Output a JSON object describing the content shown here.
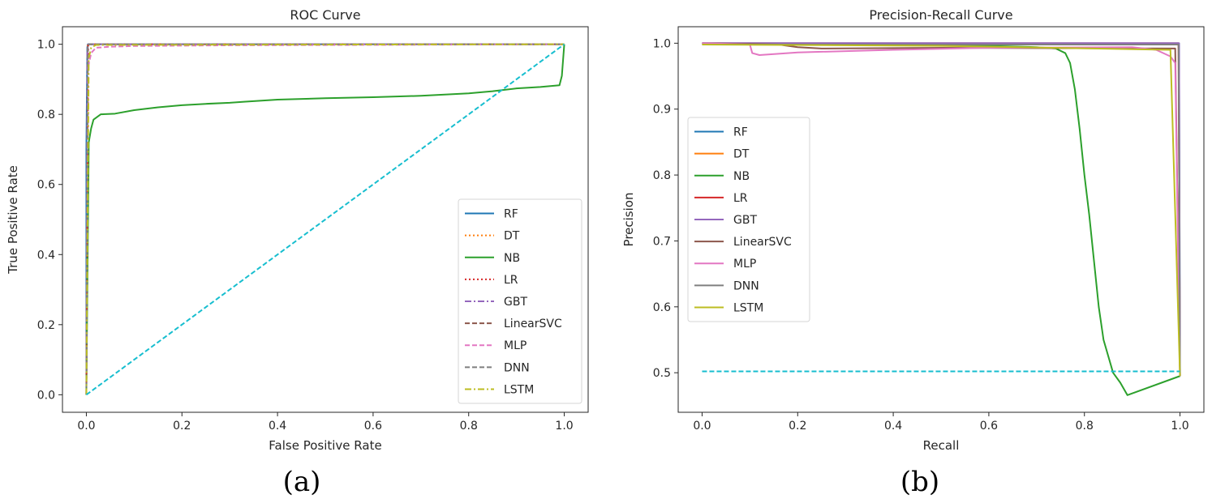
{
  "chart_data": [
    {
      "type": "line",
      "panel_label": "(a)",
      "title": "ROC Curve",
      "xlabel": "False Positive Rate",
      "ylabel": "True Positive Rate",
      "xlim": [
        -0.05,
        1.05
      ],
      "ylim": [
        -0.05,
        1.05
      ],
      "xticks": [
        0.0,
        0.2,
        0.4,
        0.6,
        0.8,
        1.0
      ],
      "yticks": [
        0.0,
        0.2,
        0.4,
        0.6,
        0.8,
        1.0
      ],
      "xtick_labels": [
        "0.0",
        "0.2",
        "0.4",
        "0.6",
        "0.8",
        "1.0"
      ],
      "ytick_labels": [
        "0.0",
        "0.2",
        "0.4",
        "0.6",
        "0.8",
        "1.0"
      ],
      "legend_position": "lower-right",
      "legend": [
        "RF",
        "DT",
        "NB",
        "LR",
        "GBT",
        "LinearSVC",
        "MLP",
        "DNN",
        "LSTM"
      ],
      "series": [
        {
          "name": "RF",
          "color": "#1f77b4",
          "dash": "solid",
          "points": [
            [
              0,
              0
            ],
            [
              0,
              0.7
            ],
            [
              0.002,
              0.99
            ],
            [
              0.003,
              1.0
            ],
            [
              1.0,
              1.0
            ]
          ]
        },
        {
          "name": "DT",
          "color": "#ff7f0e",
          "dash": "dotted",
          "points": [
            [
              0,
              0
            ],
            [
              0.003,
              0.998
            ],
            [
              0.005,
              1.0
            ],
            [
              1.0,
              1.0
            ]
          ]
        },
        {
          "name": "NB",
          "color": "#2ca02c",
          "dash": "solid",
          "points": [
            [
              0,
              0
            ],
            [
              0.005,
              0.72
            ],
            [
              0.01,
              0.76
            ],
            [
              0.015,
              0.785
            ],
            [
              0.03,
              0.8
            ],
            [
              0.06,
              0.802
            ],
            [
              0.1,
              0.812
            ],
            [
              0.15,
              0.82
            ],
            [
              0.2,
              0.826
            ],
            [
              0.25,
              0.83
            ],
            [
              0.3,
              0.833
            ],
            [
              0.33,
              0.836
            ],
            [
              0.4,
              0.842
            ],
            [
              0.5,
              0.846
            ],
            [
              0.6,
              0.849
            ],
            [
              0.7,
              0.853
            ],
            [
              0.8,
              0.86
            ],
            [
              0.85,
              0.866
            ],
            [
              0.9,
              0.874
            ],
            [
              0.95,
              0.878
            ],
            [
              0.99,
              0.883
            ],
            [
              0.995,
              0.91
            ],
            [
              1.0,
              1.0
            ]
          ]
        },
        {
          "name": "LR",
          "color": "#d62728",
          "dash": "dotted",
          "points": [
            [
              0,
              0
            ],
            [
              0.004,
              0.998
            ],
            [
              0.006,
              1.0
            ],
            [
              1.0,
              1.0
            ]
          ]
        },
        {
          "name": "GBT",
          "color": "#9467bd",
          "dash": "dashdot",
          "points": [
            [
              0,
              0
            ],
            [
              0.002,
              0.99
            ],
            [
              0.004,
              1.0
            ],
            [
              1.0,
              1.0
            ]
          ]
        },
        {
          "name": "LinearSVC",
          "color": "#8c564b",
          "dash": "dashed",
          "points": [
            [
              0,
              0
            ],
            [
              0.003,
              0.995
            ],
            [
              0.005,
              1.0
            ],
            [
              1.0,
              1.0
            ]
          ]
        },
        {
          "name": "MLP",
          "color": "#e377c2",
          "dash": "dashed",
          "points": [
            [
              0,
              0
            ],
            [
              0.003,
              0.93
            ],
            [
              0.01,
              0.975
            ],
            [
              0.02,
              0.99
            ],
            [
              0.05,
              0.993
            ],
            [
              0.1,
              0.995
            ],
            [
              0.3,
              0.997
            ],
            [
              1.0,
              1.0
            ]
          ]
        },
        {
          "name": "DNN",
          "color": "#7f7f7f",
          "dash": "dashed",
          "points": [
            [
              0,
              0
            ],
            [
              0.003,
              0.997
            ],
            [
              0.006,
              1.0
            ],
            [
              1.0,
              1.0
            ]
          ]
        },
        {
          "name": "LSTM",
          "color": "#bcbd22",
          "dash": "dashdot",
          "points": [
            [
              0,
              0
            ],
            [
              0.005,
              0.96
            ],
            [
              0.01,
              0.99
            ],
            [
              0.02,
              0.998
            ],
            [
              1.0,
              1.0
            ]
          ]
        },
        {
          "name": "chance",
          "color": "#17becf",
          "dash": "dashed",
          "legend": false,
          "points": [
            [
              0,
              0
            ],
            [
              1.0,
              1.0
            ]
          ]
        }
      ]
    },
    {
      "type": "line",
      "panel_label": "(b)",
      "title": "Precision-Recall Curve",
      "xlabel": "Recall",
      "ylabel": "Precision",
      "xlim": [
        -0.05,
        1.05
      ],
      "ylim": [
        0.44,
        1.025
      ],
      "xticks": [
        0.0,
        0.2,
        0.4,
        0.6,
        0.8,
        1.0
      ],
      "yticks": [
        0.5,
        0.6,
        0.7,
        0.8,
        0.9,
        1.0
      ],
      "xtick_labels": [
        "0.0",
        "0.2",
        "0.4",
        "0.6",
        "0.8",
        "1.0"
      ],
      "ytick_labels": [
        "0.5",
        "0.6",
        "0.7",
        "0.8",
        "0.9",
        "1.0"
      ],
      "legend_position": "center-left",
      "legend": [
        "RF",
        "DT",
        "NB",
        "LR",
        "GBT",
        "LinearSVC",
        "MLP",
        "DNN",
        "LSTM"
      ],
      "series": [
        {
          "name": "RF",
          "color": "#1f77b4",
          "dash": "solid",
          "points": [
            [
              0,
              1.0
            ],
            [
              0.998,
              1.0
            ],
            [
              1.0,
              0.5
            ],
            [
              1.0,
              0.495
            ]
          ]
        },
        {
          "name": "DT",
          "color": "#ff7f0e",
          "dash": "solid",
          "points": [
            [
              0,
              0.999
            ],
            [
              0.997,
              0.999
            ],
            [
              1.0,
              0.495
            ]
          ]
        },
        {
          "name": "NB",
          "color": "#2ca02c",
          "dash": "solid",
          "points": [
            [
              0,
              1.0
            ],
            [
              0.6,
              0.996
            ],
            [
              0.7,
              0.994
            ],
            [
              0.74,
              0.992
            ],
            [
              0.76,
              0.985
            ],
            [
              0.77,
              0.97
            ],
            [
              0.78,
              0.93
            ],
            [
              0.79,
              0.87
            ],
            [
              0.8,
              0.8
            ],
            [
              0.81,
              0.74
            ],
            [
              0.82,
              0.67
            ],
            [
              0.83,
              0.6
            ],
            [
              0.84,
              0.55
            ],
            [
              0.86,
              0.5
            ],
            [
              0.875,
              0.485
            ],
            [
              0.89,
              0.466
            ],
            [
              1.0,
              0.495
            ]
          ]
        },
        {
          "name": "LR",
          "color": "#d62728",
          "dash": "solid",
          "points": [
            [
              0,
              1.0
            ],
            [
              0.997,
              1.0
            ],
            [
              1.0,
              0.495
            ]
          ]
        },
        {
          "name": "GBT",
          "color": "#9467bd",
          "dash": "solid",
          "points": [
            [
              0,
              1.0
            ],
            [
              0.998,
              1.0
            ],
            [
              1.0,
              0.495
            ]
          ]
        },
        {
          "name": "LinearSVC",
          "color": "#8c564b",
          "dash": "solid",
          "points": [
            [
              0,
              1.0
            ],
            [
              0.16,
              0.998
            ],
            [
              0.2,
              0.994
            ],
            [
              0.25,
              0.992
            ],
            [
              0.5,
              0.993
            ],
            [
              0.99,
              0.992
            ],
            [
              1.0,
              0.495
            ]
          ]
        },
        {
          "name": "MLP",
          "color": "#e377c2",
          "dash": "solid",
          "points": [
            [
              0,
              1.0
            ],
            [
              0.1,
              0.998
            ],
            [
              0.105,
              0.985
            ],
            [
              0.12,
              0.982
            ],
            [
              0.2,
              0.986
            ],
            [
              0.4,
              0.99
            ],
            [
              0.6,
              0.993
            ],
            [
              0.9,
              0.994
            ],
            [
              0.95,
              0.99
            ],
            [
              0.98,
              0.98
            ],
            [
              0.99,
              0.97
            ],
            [
              1.0,
              0.495
            ]
          ]
        },
        {
          "name": "DNN",
          "color": "#7f7f7f",
          "dash": "solid",
          "points": [
            [
              0,
              0.998
            ],
            [
              0.997,
              0.998
            ],
            [
              1.0,
              0.495
            ]
          ]
        },
        {
          "name": "LSTM",
          "color": "#bcbd22",
          "dash": "solid",
          "points": [
            [
              0,
              0.998
            ],
            [
              0.5,
              0.996
            ],
            [
              0.98,
              0.99
            ],
            [
              1.0,
              0.495
            ]
          ]
        },
        {
          "name": "baseline",
          "color": "#17becf",
          "dash": "dashed",
          "legend": false,
          "points": [
            [
              0,
              0.502
            ],
            [
              1.0,
              0.502
            ]
          ]
        }
      ]
    }
  ]
}
